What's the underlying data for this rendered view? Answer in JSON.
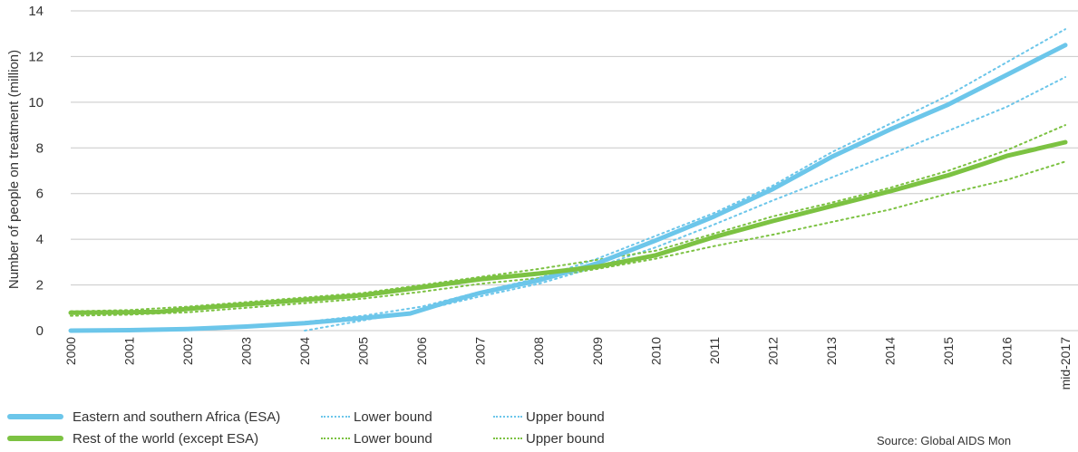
{
  "chart_data": {
    "type": "line",
    "title": "",
    "ylabel": "Number of people on treatment (million)",
    "xlabel": "",
    "ylim": [
      0,
      14
    ],
    "yticks": [
      0,
      2,
      4,
      6,
      8,
      10,
      12,
      14
    ],
    "categories": [
      "2000",
      "2001",
      "2002",
      "2003",
      "2004",
      "2005",
      "2006",
      "2007",
      "2008",
      "2009",
      "2010",
      "2011",
      "2012",
      "2013",
      "2014",
      "2015",
      "2016",
      "mid-2017"
    ],
    "x": [
      2000,
      2001,
      2002,
      2003,
      2004,
      2005,
      2006,
      2007,
      2008,
      2009,
      2010,
      2011,
      2012,
      2013,
      2014,
      2015,
      2016,
      2017
    ],
    "grid": "horizontal",
    "legend_position": "bottom-left",
    "series": [
      {
        "name": "Eastern and southern Africa (ESA)",
        "style": "solid",
        "color": "#6cc6ea",
        "x": [
          2000,
          2001,
          2002,
          2003,
          2004,
          2005,
          2005.8,
          2006.5,
          2007,
          2008,
          2009,
          2010,
          2011,
          2012,
          2013,
          2014,
          2015,
          2016,
          2017
        ],
        "values": [
          0.0,
          0.02,
          0.07,
          0.18,
          0.33,
          0.55,
          0.75,
          1.3,
          1.65,
          2.2,
          2.95,
          3.95,
          5.0,
          6.2,
          7.6,
          8.8,
          9.9,
          11.2,
          12.5
        ]
      },
      {
        "name": "Lower bound",
        "group": "Eastern and southern Africa (ESA)",
        "style": "dotted",
        "color": "#6cc6ea",
        "x": [
          2004,
          2005,
          2006,
          2007,
          2008,
          2009,
          2010,
          2011,
          2012,
          2013,
          2014,
          2015,
          2016,
          2017
        ],
        "values": [
          0.0,
          0.45,
          0.9,
          1.5,
          2.05,
          2.8,
          3.65,
          4.65,
          5.7,
          6.7,
          7.7,
          8.75,
          9.8,
          11.1
        ]
      },
      {
        "name": "Upper bound",
        "group": "Eastern and southern Africa (ESA)",
        "style": "dotted",
        "color": "#6cc6ea",
        "x": [
          2004,
          2005,
          2006,
          2007,
          2008,
          2009,
          2010,
          2011,
          2012,
          2013,
          2014,
          2015,
          2016,
          2017
        ],
        "values": [
          0.38,
          0.65,
          1.05,
          1.7,
          2.3,
          3.15,
          4.15,
          5.15,
          6.35,
          7.8,
          9.05,
          10.3,
          11.75,
          13.2
        ]
      },
      {
        "name": "Rest of the world (except ESA)",
        "style": "solid",
        "color": "#7cc242",
        "x": [
          2000,
          2001,
          2001.5,
          2002,
          2003,
          2004,
          2005,
          2006,
          2007,
          2008,
          2009,
          2010,
          2011,
          2012,
          2013,
          2014,
          2015,
          2015.6,
          2016,
          2017
        ],
        "values": [
          0.78,
          0.8,
          0.82,
          0.95,
          1.15,
          1.35,
          1.55,
          1.9,
          2.25,
          2.5,
          2.8,
          3.3,
          4.1,
          4.8,
          5.45,
          6.1,
          6.8,
          7.3,
          7.65,
          8.25
        ]
      },
      {
        "name": "Lower bound",
        "group": "Rest of the world (except ESA)",
        "style": "dotted",
        "color": "#7cc242",
        "x": [
          2000,
          2001,
          2002,
          2003,
          2004,
          2005,
          2006,
          2007,
          2008,
          2009,
          2010,
          2011,
          2012,
          2013,
          2014,
          2015,
          2016,
          2017
        ],
        "values": [
          0.65,
          0.7,
          0.8,
          1.0,
          1.2,
          1.4,
          1.7,
          2.05,
          2.3,
          2.7,
          3.15,
          3.7,
          4.2,
          4.75,
          5.3,
          6.0,
          6.6,
          7.4
        ]
      },
      {
        "name": "Upper bound",
        "group": "Rest of the world (except ESA)",
        "style": "dotted",
        "color": "#7cc242",
        "x": [
          2000,
          2001,
          2002,
          2003,
          2004,
          2005,
          2006,
          2007,
          2008,
          2009,
          2010,
          2011,
          2012,
          2013,
          2014,
          2015,
          2016,
          2017
        ],
        "values": [
          0.85,
          0.9,
          1.05,
          1.25,
          1.45,
          1.65,
          2.0,
          2.35,
          2.7,
          3.1,
          3.5,
          4.25,
          5.0,
          5.6,
          6.25,
          7.0,
          7.9,
          9.0
        ]
      }
    ]
  },
  "legend": {
    "esa_label": "Eastern and southern Africa (ESA)",
    "esa_lower": "Lower bound",
    "esa_upper": "Upper bound",
    "row_label": "Rest of the world (except ESA)",
    "row_lower": "Lower bound",
    "row_upper": "Upper bound"
  },
  "source": "Source: Global AIDS Mon"
}
